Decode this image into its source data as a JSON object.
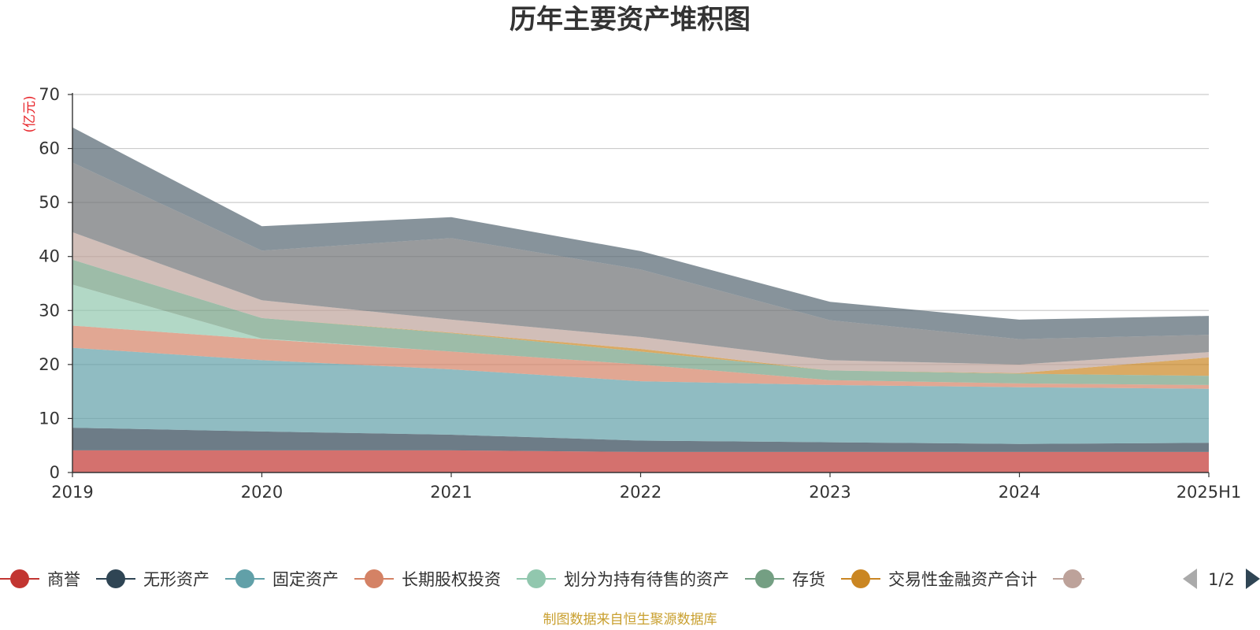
{
  "chart_data": {
    "type": "area",
    "stacked": true,
    "title": "历年主要资产堆积图",
    "unit_label": "(亿元)",
    "x": [
      "2019",
      "2020",
      "2021",
      "2022",
      "2023",
      "2024",
      "2025H1"
    ],
    "ylim": [
      0,
      70
    ],
    "yticks": [
      0,
      10,
      20,
      30,
      40,
      50,
      60,
      70
    ],
    "grid": true,
    "legend_position": "bottom",
    "series": [
      {
        "name": "商誉",
        "color": "#c23531",
        "values": [
          4.1,
          4.1,
          4.1,
          3.8,
          3.8,
          3.8,
          3.8
        ]
      },
      {
        "name": "无形资产",
        "color": "#2f4554",
        "values": [
          4.2,
          3.5,
          2.9,
          2.1,
          1.8,
          1.5,
          1.7
        ]
      },
      {
        "name": "固定资产",
        "color": "#61a0a8",
        "values": [
          14.8,
          13.2,
          12.1,
          11.0,
          10.6,
          10.5,
          10.0
        ]
      },
      {
        "name": "长期股权投资",
        "color": "#d48265",
        "values": [
          4.1,
          3.9,
          3.3,
          3.1,
          0.9,
          0.7,
          0.7
        ]
      },
      {
        "name": "划分为持有待售的资产",
        "color": "#91c7ae",
        "values": [
          7.6,
          0.1,
          0.0,
          0.0,
          0.0,
          0.0,
          0.0
        ]
      },
      {
        "name": "存货",
        "color": "#749f83",
        "values": [
          4.6,
          3.8,
          3.4,
          2.4,
          1.8,
          1.8,
          1.7
        ]
      },
      {
        "name": "交易性金融资产合计",
        "color": "#ca8622",
        "values": [
          0.0,
          0.0,
          0.1,
          0.5,
          0.0,
          0.1,
          3.4
        ]
      },
      {
        "name": "",
        "color": "#bda29a",
        "values": [
          5.1,
          3.3,
          2.4,
          2.2,
          1.9,
          1.6,
          1.0
        ]
      },
      {
        "name": "",
        "color": "#6e7074",
        "values": [
          12.9,
          9.2,
          15.1,
          12.5,
          7.4,
          4.7,
          3.2
        ]
      },
      {
        "name": "",
        "color": "#546570",
        "values": [
          6.5,
          4.5,
          3.9,
          3.4,
          3.4,
          3.6,
          3.5
        ]
      }
    ]
  },
  "legend": {
    "items": [
      "商誉",
      "无形资产",
      "固定资产",
      "长期股权投资",
      "划分为持有待售的资产",
      "存货",
      "交易性金融资产合计"
    ],
    "page_indicator": "1/2"
  },
  "footer": {
    "source": "制图数据来自恒生聚源数据库"
  }
}
